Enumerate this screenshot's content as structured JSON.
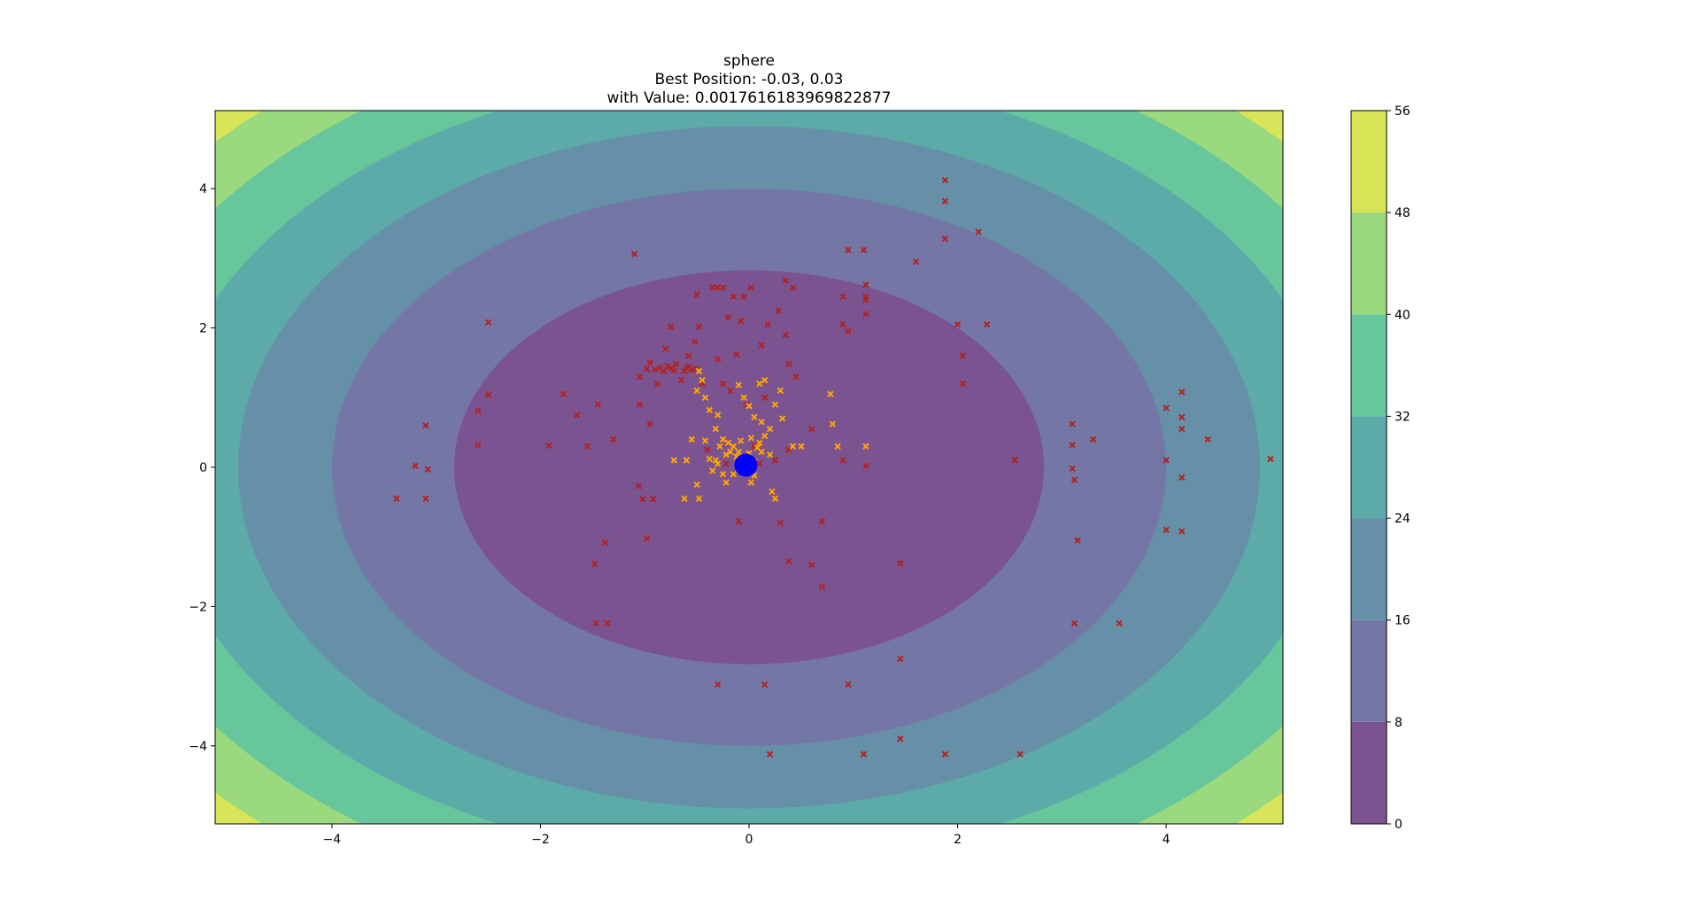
{
  "chart_data": {
    "type": "contour",
    "function_name": "sphere",
    "title_lines": [
      "sphere",
      "Best Position: -0.03, 0.03",
      "with Value: 0.0017616183969822877"
    ],
    "best_position": {
      "x": -0.03,
      "y": 0.03
    },
    "best_value": 0.0017616183969822877,
    "xlim": [
      -5.12,
      5.12
    ],
    "ylim": [
      -5.12,
      5.12
    ],
    "xticks": [
      -4,
      -2,
      0,
      2,
      4
    ],
    "yticks": [
      -4,
      -2,
      0,
      2,
      4
    ],
    "xtick_labels": [
      "−4",
      "−2",
      "0",
      "2",
      "4"
    ],
    "ytick_labels": [
      "−4",
      "−2",
      "0",
      "2",
      "4"
    ],
    "contour_levels": [
      0,
      8,
      16,
      24,
      32,
      40,
      48,
      56
    ],
    "colorbar_tick_labels": [
      "0",
      "8",
      "16",
      "24",
      "32",
      "40",
      "48",
      "56"
    ],
    "level_colors": [
      "#7b5390",
      "#7477a6",
      "#6690a7",
      "#5caba9",
      "#67c69b",
      "#9ad97e",
      "#d7e456"
    ],
    "colors": {
      "early_particles": "#b22222",
      "late_particles": "#ffa500",
      "best_marker": "#0000ff"
    },
    "series": [
      {
        "marker": "x",
        "color": "#b22222",
        "points": [
          [
            -3.38,
            -0.45
          ],
          [
            -3.1,
            0.6
          ],
          [
            -3.2,
            0.02
          ],
          [
            -3.08,
            -0.03
          ],
          [
            -3.1,
            -0.45
          ],
          [
            -2.6,
            0.32
          ],
          [
            -2.5,
            2.08
          ],
          [
            -2.6,
            0.81
          ],
          [
            -2.5,
            1.04
          ],
          [
            -1.92,
            0.31
          ],
          [
            -1.78,
            1.05
          ],
          [
            -1.65,
            0.75
          ],
          [
            -1.55,
            0.3
          ],
          [
            -1.45,
            0.9
          ],
          [
            -1.3,
            0.4
          ],
          [
            -1.38,
            -1.08
          ],
          [
            -1.48,
            -1.39
          ],
          [
            -1.47,
            -2.24
          ],
          [
            -1.36,
            -2.24
          ],
          [
            -1.1,
            3.06
          ],
          [
            -1.06,
            -0.27
          ],
          [
            -1.02,
            -0.46
          ],
          [
            -0.98,
            -1.02
          ],
          [
            -0.92,
            -0.46
          ],
          [
            -0.95,
            0.62
          ],
          [
            -1.05,
            0.9
          ],
          [
            -1.05,
            1.3
          ],
          [
            -0.98,
            1.41
          ],
          [
            -0.95,
            1.5
          ],
          [
            -0.9,
            1.4
          ],
          [
            -0.85,
            1.43
          ],
          [
            -0.82,
            1.38
          ],
          [
            -0.78,
            1.45
          ],
          [
            -0.75,
            1.42
          ],
          [
            -0.72,
            1.39
          ],
          [
            -0.7,
            1.48
          ],
          [
            -0.88,
            1.2
          ],
          [
            -0.8,
            1.7
          ],
          [
            -0.75,
            2.02
          ],
          [
            -0.65,
            1.25
          ],
          [
            -0.62,
            1.38
          ],
          [
            -0.6,
            1.42
          ],
          [
            -0.58,
            1.45
          ],
          [
            -0.55,
            1.4
          ],
          [
            -0.5,
            1.41
          ],
          [
            -0.58,
            1.6
          ],
          [
            -0.52,
            1.8
          ],
          [
            -0.45,
            1.2
          ],
          [
            -0.48,
            2.02
          ],
          [
            -0.5,
            2.48
          ],
          [
            -0.35,
            2.58
          ],
          [
            -0.3,
            2.58
          ],
          [
            -0.25,
            2.58
          ],
          [
            -0.2,
            2.15
          ],
          [
            -0.15,
            2.45
          ],
          [
            -0.3,
            1.55
          ],
          [
            -0.25,
            1.2
          ],
          [
            -0.18,
            1.1
          ],
          [
            -0.12,
            1.62
          ],
          [
            -0.08,
            2.1
          ],
          [
            -0.05,
            2.45
          ],
          [
            0.02,
            2.58
          ],
          [
            -0.02,
            0.9
          ],
          [
            0.05,
            0.3
          ],
          [
            -0.05,
            0.08
          ],
          [
            0.1,
            0.05
          ],
          [
            0.15,
            1.0
          ],
          [
            0.12,
            1.75
          ],
          [
            0.18,
            2.05
          ],
          [
            0.28,
            2.25
          ],
          [
            0.35,
            2.68
          ],
          [
            0.42,
            2.58
          ],
          [
            0.35,
            1.9
          ],
          [
            0.38,
            1.48
          ],
          [
            0.45,
            1.3
          ],
          [
            0.38,
            0.25
          ],
          [
            0.3,
            -0.8
          ],
          [
            0.38,
            -1.35
          ],
          [
            0.6,
            -1.4
          ],
          [
            0.7,
            -1.72
          ],
          [
            0.7,
            -0.78
          ],
          [
            0.9,
            0.1
          ],
          [
            0.9,
            2.05
          ],
          [
            0.9,
            2.45
          ],
          [
            0.95,
            3.12
          ],
          [
            0.95,
            1.95
          ],
          [
            1.1,
            3.12
          ],
          [
            1.12,
            2.62
          ],
          [
            1.12,
            2.4
          ],
          [
            1.12,
            2.2
          ],
          [
            1.12,
            2.45
          ],
          [
            1.12,
            0.02
          ],
          [
            1.6,
            2.95
          ],
          [
            1.88,
            4.12
          ],
          [
            1.88,
            3.82
          ],
          [
            1.88,
            3.28
          ],
          [
            2.0,
            2.05
          ],
          [
            2.05,
            1.6
          ],
          [
            2.05,
            1.2
          ],
          [
            2.2,
            3.38
          ],
          [
            2.28,
            2.05
          ],
          [
            2.55,
            0.1
          ],
          [
            3.1,
            0.62
          ],
          [
            3.1,
            0.32
          ],
          [
            3.1,
            -0.02
          ],
          [
            3.12,
            -0.18
          ],
          [
            3.15,
            -1.05
          ],
          [
            3.12,
            -2.24
          ],
          [
            3.3,
            0.4
          ],
          [
            3.55,
            -2.24
          ],
          [
            4.0,
            0.85
          ],
          [
            4.0,
            0.1
          ],
          [
            4.0,
            -0.9
          ],
          [
            4.15,
            1.08
          ],
          [
            4.15,
            0.72
          ],
          [
            4.15,
            0.55
          ],
          [
            4.15,
            -0.15
          ],
          [
            4.15,
            -0.92
          ],
          [
            4.4,
            0.4
          ],
          [
            5.0,
            0.12
          ],
          [
            -0.3,
            -3.12
          ],
          [
            0.15,
            -3.12
          ],
          [
            0.95,
            -3.12
          ],
          [
            1.45,
            -2.75
          ],
          [
            1.45,
            -3.9
          ],
          [
            1.45,
            -1.38
          ],
          [
            0.2,
            -4.12
          ],
          [
            1.1,
            -4.12
          ],
          [
            1.88,
            -4.12
          ],
          [
            2.6,
            -4.12
          ],
          [
            0.6,
            0.55
          ],
          [
            -0.1,
            -0.78
          ],
          [
            0.25,
            0.1
          ],
          [
            -0.22,
            0.05
          ],
          [
            -0.4,
            0.25
          ]
        ]
      },
      {
        "marker": "x",
        "color": "#ffa500",
        "points": [
          [
            -0.48,
            1.38
          ],
          [
            -0.45,
            1.25
          ],
          [
            -0.5,
            1.1
          ],
          [
            -0.42,
            1.0
          ],
          [
            -0.38,
            0.82
          ],
          [
            -0.3,
            0.75
          ],
          [
            -0.32,
            0.55
          ],
          [
            -0.25,
            0.4
          ],
          [
            -0.2,
            0.35
          ],
          [
            -0.18,
            0.22
          ],
          [
            -0.15,
            0.3
          ],
          [
            -0.12,
            0.15
          ],
          [
            -0.1,
            0.22
          ],
          [
            -0.05,
            0.1
          ],
          [
            0.0,
            0.2
          ],
          [
            0.05,
            0.08
          ],
          [
            0.08,
            0.28
          ],
          [
            0.1,
            0.35
          ],
          [
            0.15,
            0.45
          ],
          [
            0.2,
            0.55
          ],
          [
            0.12,
            0.65
          ],
          [
            0.05,
            0.72
          ],
          [
            0.0,
            0.88
          ],
          [
            -0.05,
            1.0
          ],
          [
            -0.1,
            1.18
          ],
          [
            0.1,
            1.2
          ],
          [
            0.15,
            1.25
          ],
          [
            0.3,
            1.1
          ],
          [
            0.25,
            0.9
          ],
          [
            0.32,
            0.7
          ],
          [
            0.42,
            0.3
          ],
          [
            0.5,
            0.3
          ],
          [
            0.78,
            1.05
          ],
          [
            0.8,
            0.62
          ],
          [
            0.85,
            0.3
          ],
          [
            1.12,
            0.3
          ],
          [
            -0.55,
            0.4
          ],
          [
            -0.6,
            0.1
          ],
          [
            -0.72,
            0.1
          ],
          [
            -0.62,
            -0.45
          ],
          [
            -0.5,
            -0.25
          ],
          [
            -0.48,
            -0.45
          ],
          [
            -0.35,
            -0.05
          ],
          [
            -0.3,
            0.05
          ],
          [
            -0.25,
            -0.1
          ],
          [
            -0.22,
            -0.22
          ],
          [
            -0.15,
            -0.1
          ],
          [
            0.02,
            -0.22
          ],
          [
            0.05,
            -0.12
          ],
          [
            0.22,
            -0.35
          ],
          [
            0.25,
            -0.45
          ],
          [
            -0.38,
            0.12
          ],
          [
            -0.42,
            0.38
          ],
          [
            -0.32,
            0.1
          ],
          [
            -0.28,
            0.3
          ],
          [
            -0.22,
            0.18
          ],
          [
            -0.08,
            0.38
          ],
          [
            0.02,
            0.42
          ],
          [
            0.12,
            0.22
          ],
          [
            0.2,
            0.18
          ]
        ]
      }
    ]
  }
}
